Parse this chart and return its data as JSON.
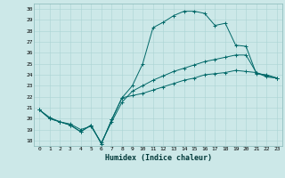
{
  "xlabel": "Humidex (Indice chaleur)",
  "ylabel": "",
  "bg_color": "#cce8e8",
  "line_color": "#006868",
  "xlim": [
    -0.5,
    23.5
  ],
  "ylim": [
    17.5,
    30.5
  ],
  "xticks": [
    0,
    1,
    2,
    3,
    4,
    5,
    6,
    7,
    8,
    9,
    10,
    11,
    12,
    13,
    14,
    15,
    16,
    17,
    18,
    19,
    20,
    21,
    22,
    23
  ],
  "yticks": [
    18,
    19,
    20,
    21,
    22,
    23,
    24,
    25,
    26,
    27,
    28,
    29,
    30
  ],
  "series": [
    [
      20.8,
      20.0,
      19.7,
      19.4,
      18.8,
      19.4,
      17.7,
      19.9,
      21.9,
      22.1,
      22.3,
      22.6,
      22.9,
      23.2,
      23.5,
      23.7,
      24.0,
      24.1,
      24.2,
      24.4,
      24.3,
      24.2,
      23.8,
      23.7
    ],
    [
      20.8,
      20.0,
      19.7,
      19.4,
      18.8,
      19.4,
      17.7,
      19.9,
      21.9,
      23.0,
      25.0,
      28.3,
      28.8,
      29.4,
      29.8,
      29.8,
      29.6,
      28.5,
      28.7,
      26.7,
      26.6,
      24.1,
      24.0,
      23.7
    ],
    [
      20.8,
      20.1,
      19.7,
      19.5,
      19.0,
      19.3,
      17.8,
      19.7,
      21.5,
      22.5,
      23.0,
      23.5,
      23.9,
      24.3,
      24.6,
      24.9,
      25.2,
      25.4,
      25.6,
      25.8,
      25.8,
      24.2,
      23.9,
      23.7
    ]
  ]
}
